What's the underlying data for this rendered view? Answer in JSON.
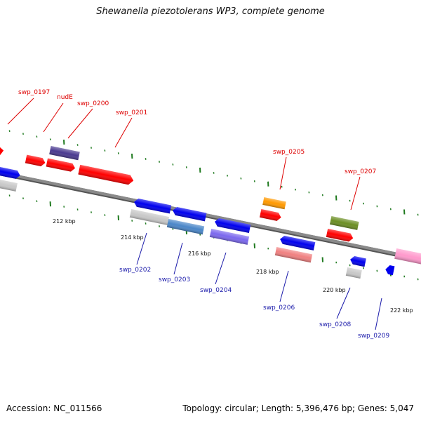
{
  "title": "Shewanella piezotolerans WP3, complete genome",
  "footer": {
    "accession": "Accession: NC_011566",
    "summary": "Topology: circular; Length: 5,396,476 bp; Genes: 5,047"
  },
  "colors": {
    "backbone": "#8a8a8a",
    "tick": "#1f7a1f",
    "upper_label": "#dd0000",
    "lower_label": "#1a1aaa"
  },
  "kbp_labels": [
    "212 kbp",
    "214 kbp",
    "216 kbp",
    "218 kbp",
    "220 kbp",
    "222 kbp"
  ],
  "gene_labels": [
    "swp_0197",
    "nudE",
    "swp_0200",
    "swp_0201",
    "swp_0205",
    "swp_0207",
    "swp_0202",
    "swp_0203",
    "swp_0204",
    "swp_0206",
    "swp_0208",
    "swp_0209"
  ],
  "gene_colors": [
    "#ff0000",
    "#0000ee",
    "#c8c8c8",
    "#4a3a90",
    "#ff9900",
    "#6b8e23",
    "#4a86c8",
    "#7b68ee",
    "#f08080",
    "#ff99cc"
  ]
}
